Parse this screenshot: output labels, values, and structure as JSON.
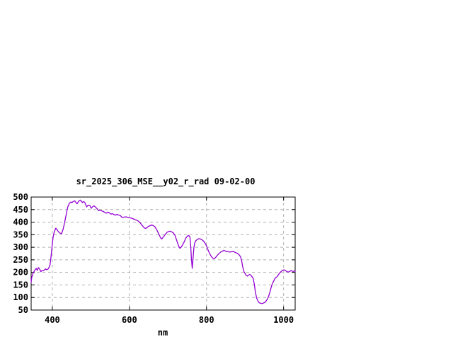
{
  "page": {
    "background": "#ffffff"
  },
  "chart_data": {
    "type": "line",
    "title": "sr_2025_306_MSE__y02_r_rad 09-02-00",
    "xlabel": "nm",
    "ylabel": "",
    "xlim": [
      345,
      1030
    ],
    "ylim": [
      50,
      500
    ],
    "x_ticks": [
      400,
      600,
      800,
      1000
    ],
    "y_ticks": [
      50,
      100,
      150,
      200,
      250,
      300,
      350,
      400,
      450,
      500
    ],
    "grid": true,
    "legend": "none",
    "line_color": "#9400D3",
    "grid_color": "#b0b0b0",
    "axis_color": "#000000",
    "series": [
      {
        "name": "spectral_radiance",
        "points": [
          [
            345,
            160
          ],
          [
            346,
            176
          ],
          [
            348,
            186
          ],
          [
            350,
            196
          ],
          [
            353,
            205
          ],
          [
            356,
            212
          ],
          [
            358,
            216
          ],
          [
            361,
            208
          ],
          [
            364,
            219
          ],
          [
            367,
            213
          ],
          [
            370,
            203
          ],
          [
            373,
            207
          ],
          [
            376,
            206
          ],
          [
            379,
            209
          ],
          [
            382,
            214
          ],
          [
            385,
            211
          ],
          [
            388,
            212
          ],
          [
            391,
            218
          ],
          [
            394,
            230
          ],
          [
            396,
            255
          ],
          [
            398,
            285
          ],
          [
            400,
            312
          ],
          [
            402,
            340
          ],
          [
            404,
            355
          ],
          [
            406,
            365
          ],
          [
            409,
            376
          ],
          [
            412,
            371
          ],
          [
            415,
            363
          ],
          [
            419,
            357
          ],
          [
            424,
            354
          ],
          [
            428,
            372
          ],
          [
            432,
            400
          ],
          [
            436,
            432
          ],
          [
            440,
            460
          ],
          [
            444,
            475
          ],
          [
            448,
            480
          ],
          [
            451,
            478
          ],
          [
            454,
            482
          ],
          [
            458,
            485
          ],
          [
            461,
            479
          ],
          [
            464,
            473
          ],
          [
            467,
            480
          ],
          [
            470,
            486
          ],
          [
            472,
            488
          ],
          [
            475,
            484
          ],
          [
            478,
            478
          ],
          [
            481,
            482
          ],
          [
            484,
            479
          ],
          [
            487,
            469
          ],
          [
            489,
            461
          ],
          [
            492,
            466
          ],
          [
            495,
            468
          ],
          [
            498,
            465
          ],
          [
            501,
            455
          ],
          [
            504,
            461
          ],
          [
            508,
            465
          ],
          [
            512,
            460
          ],
          [
            516,
            454
          ],
          [
            520,
            446
          ],
          [
            524,
            448
          ],
          [
            528,
            445
          ],
          [
            532,
            443
          ],
          [
            536,
            439
          ],
          [
            540,
            436
          ],
          [
            544,
            440
          ],
          [
            548,
            437
          ],
          [
            552,
            432
          ],
          [
            556,
            434
          ],
          [
            560,
            430
          ],
          [
            564,
            428
          ],
          [
            568,
            431
          ],
          [
            572,
            428
          ],
          [
            576,
            427
          ],
          [
            580,
            420
          ],
          [
            584,
            419
          ],
          [
            588,
            421
          ],
          [
            592,
            421
          ],
          [
            596,
            419
          ],
          [
            600,
            418
          ],
          [
            605,
            416
          ],
          [
            610,
            413
          ],
          [
            615,
            410
          ],
          [
            619,
            408
          ],
          [
            624,
            403
          ],
          [
            628,
            397
          ],
          [
            633,
            387
          ],
          [
            637,
            380
          ],
          [
            640,
            376
          ],
          [
            643,
            375
          ],
          [
            646,
            379
          ],
          [
            650,
            384
          ],
          [
            654,
            386
          ],
          [
            658,
            389
          ],
          [
            662,
            386
          ],
          [
            666,
            382
          ],
          [
            670,
            372
          ],
          [
            674,
            360
          ],
          [
            678,
            347
          ],
          [
            681,
            337
          ],
          [
            684,
            333
          ],
          [
            687,
            339
          ],
          [
            690,
            345
          ],
          [
            694,
            353
          ],
          [
            698,
            360
          ],
          [
            702,
            363
          ],
          [
            706,
            364
          ],
          [
            710,
            361
          ],
          [
            714,
            357
          ],
          [
            718,
            348
          ],
          [
            722,
            330
          ],
          [
            726,
            312
          ],
          [
            729,
            300
          ],
          [
            731,
            296
          ],
          [
            734,
            300
          ],
          [
            738,
            310
          ],
          [
            742,
            321
          ],
          [
            746,
            336
          ],
          [
            750,
            344
          ],
          [
            754,
            347
          ],
          [
            757,
            341
          ],
          [
            759,
            305
          ],
          [
            761,
            252
          ],
          [
            763,
            216
          ],
          [
            765,
            253
          ],
          [
            767,
            295
          ],
          [
            769,
            315
          ],
          [
            772,
            326
          ],
          [
            776,
            331
          ],
          [
            780,
            334
          ],
          [
            784,
            333
          ],
          [
            788,
            330
          ],
          [
            792,
            325
          ],
          [
            796,
            317
          ],
          [
            800,
            305
          ],
          [
            804,
            290
          ],
          [
            808,
            275
          ],
          [
            813,
            262
          ],
          [
            817,
            256
          ],
          [
            821,
            255
          ],
          [
            825,
            262
          ],
          [
            829,
            270
          ],
          [
            833,
            276
          ],
          [
            837,
            281
          ],
          [
            841,
            284
          ],
          [
            845,
            288
          ],
          [
            850,
            284
          ],
          [
            855,
            283
          ],
          [
            860,
            281
          ],
          [
            865,
            282
          ],
          [
            870,
            283
          ],
          [
            875,
            279
          ],
          [
            880,
            276
          ],
          [
            884,
            271
          ],
          [
            888,
            263
          ],
          [
            891,
            248
          ],
          [
            894,
            222
          ],
          [
            897,
            203
          ],
          [
            900,
            196
          ],
          [
            903,
            188
          ],
          [
            906,
            185
          ],
          [
            909,
            189
          ],
          [
            912,
            192
          ],
          [
            915,
            189
          ],
          [
            918,
            183
          ],
          [
            921,
            177
          ],
          [
            924,
            153
          ],
          [
            927,
            120
          ],
          [
            930,
            99
          ],
          [
            933,
            87
          ],
          [
            936,
            80
          ],
          [
            940,
            77
          ],
          [
            944,
            76
          ],
          [
            948,
            78
          ],
          [
            952,
            81
          ],
          [
            955,
            87
          ],
          [
            958,
            94
          ],
          [
            961,
            104
          ],
          [
            964,
            119
          ],
          [
            967,
            136
          ],
          [
            970,
            151
          ],
          [
            973,
            162
          ],
          [
            976,
            171
          ],
          [
            979,
            179
          ],
          [
            982,
            181
          ],
          [
            985,
            187
          ],
          [
            988,
            194
          ],
          [
            991,
            200
          ],
          [
            994,
            204
          ],
          [
            997,
            208
          ],
          [
            1000,
            210
          ],
          [
            1004,
            208
          ],
          [
            1008,
            204
          ],
          [
            1012,
            201
          ],
          [
            1016,
            204
          ],
          [
            1019,
            207
          ],
          [
            1022,
            205
          ],
          [
            1025,
            204
          ],
          [
            1028,
            205
          ],
          [
            1030,
            204
          ]
        ]
      }
    ]
  }
}
